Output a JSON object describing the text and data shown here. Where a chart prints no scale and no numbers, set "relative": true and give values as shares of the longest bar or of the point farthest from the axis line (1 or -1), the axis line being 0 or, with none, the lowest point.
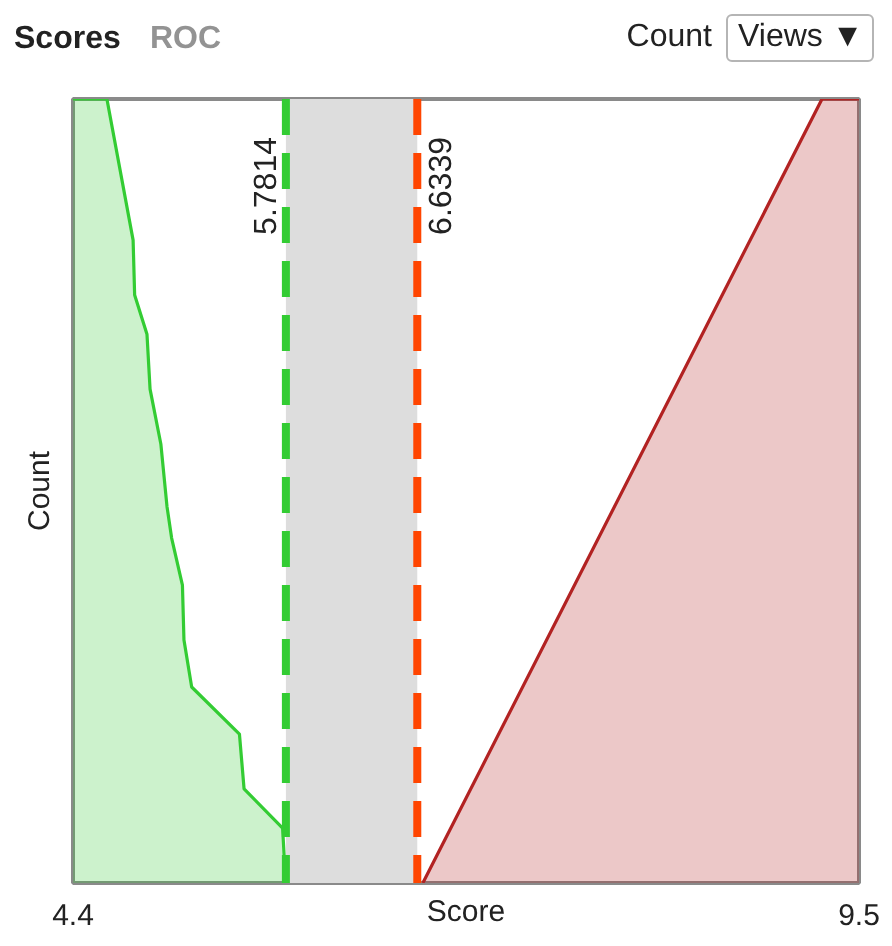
{
  "chart_data": {
    "type": "area",
    "title": "Scores",
    "annotations": [
      "ROC",
      "Count",
      "Views ▼"
    ],
    "xlabel": "Score",
    "ylabel": "Count",
    "relative": true,
    "xlim": [
      4.4,
      9.5
    ],
    "xticks": [
      4.4,
      9.5
    ],
    "series": [
      {
        "color": "#33cc33",
        "x": [
          4.4,
          4.62,
          4.79,
          4.8,
          4.88,
          4.9,
          4.97,
          5.01,
          5.04,
          5.11,
          5.12,
          5.17,
          5.48,
          5.51,
          5.76,
          5.78
        ],
        "values": [
          1,
          1,
          0.82,
          0.75,
          0.7,
          0.63,
          0.56,
          0.48,
          0.44,
          0.38,
          0.31,
          0.25,
          0.19,
          0.12,
          0.07,
          0
        ]
      },
      {
        "color": "#b22222",
        "x": [
          6.67,
          9.26,
          9.5
        ],
        "values": [
          0,
          1,
          1
        ]
      }
    ],
    "ref_lines": [
      {
        "axis": "x",
        "value": 5.7814,
        "label": "5.7814",
        "color": "#33cc33",
        "line_style": "dashed"
      },
      {
        "axis": "x",
        "value": 6.6339,
        "label": "6.6339",
        "color": "#ff4500",
        "line_style": "dashed"
      }
    ],
    "bands": [
      {
        "axis": "x",
        "from": 5.7814,
        "to": 6.6339,
        "color": "#dddddd"
      }
    ]
  }
}
